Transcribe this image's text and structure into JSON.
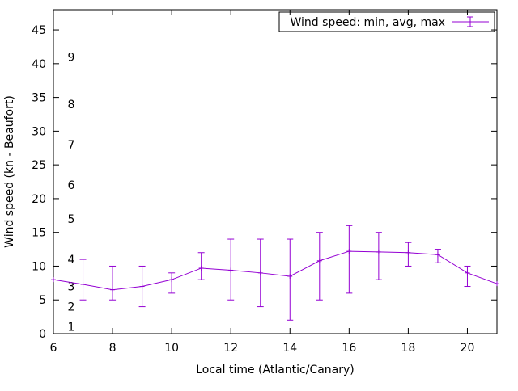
{
  "chart_data": {
    "type": "line",
    "title": "",
    "legend_label": "Wind speed: min, avg, max",
    "xlabel": "Local time (Atlantic/Canary)",
    "ylabel": "Wind speed (kn - Beaufort)",
    "xlim": [
      6,
      21
    ],
    "ylim": [
      0,
      48
    ],
    "x_ticks": [
      6,
      8,
      10,
      12,
      14,
      16,
      18,
      20
    ],
    "y_ticks": [
      0,
      5,
      10,
      15,
      20,
      25,
      30,
      35,
      40,
      45
    ],
    "beaufort_scale": [
      {
        "label": "1",
        "kn": 1
      },
      {
        "label": "2",
        "kn": 4
      },
      {
        "label": "3",
        "kn": 7
      },
      {
        "label": "4",
        "kn": 11
      },
      {
        "label": "5",
        "kn": 17
      },
      {
        "label": "6",
        "kn": 22
      },
      {
        "label": "7",
        "kn": 28
      },
      {
        "label": "8",
        "kn": 34
      },
      {
        "label": "9",
        "kn": 41
      }
    ],
    "series_color": "#9400d3",
    "axis_color": "#000000",
    "legend_position": "top-right",
    "grid": false,
    "x": [
      6,
      7,
      8,
      9,
      10,
      11,
      12,
      13,
      14,
      15,
      16,
      17,
      18,
      19,
      20,
      21
    ],
    "series": [
      {
        "name": "avg",
        "values": [
          8,
          7.3,
          6.5,
          7,
          8,
          9.7,
          9.4,
          9,
          8.5,
          10.8,
          12.2,
          12.1,
          12,
          11.7,
          9,
          7.4
        ]
      },
      {
        "name": "min",
        "values": [
          null,
          5,
          5,
          4,
          6,
          8,
          5,
          4,
          2,
          5,
          6,
          8,
          10,
          10.5,
          7,
          null
        ]
      },
      {
        "name": "max",
        "values": [
          null,
          11,
          10,
          10,
          9,
          12,
          14,
          14,
          14,
          15,
          16,
          15,
          13.5,
          12.5,
          10,
          null
        ]
      }
    ]
  }
}
